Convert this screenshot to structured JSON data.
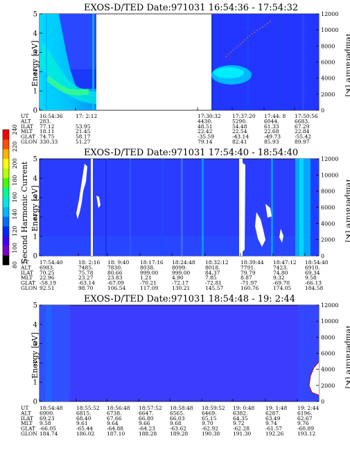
{
  "chart_data": [
    {
      "type": "heatmap",
      "title": "EXOS-D/TED   Date:971031   16:54:36 - 17:54:32",
      "ylabel": "Energy [eV]",
      "y2label": "Temperature [K]",
      "ylim": [
        0,
        5
      ],
      "y2lim": [
        0,
        12000
      ],
      "yticks": [
        "0",
        "1",
        "2",
        "3",
        "4",
        "5"
      ],
      "y2ticks": [
        "0",
        "2000",
        "4000",
        "6000",
        "8000",
        "10000",
        "12000"
      ],
      "orbit_labels": [
        "UT",
        "ALT",
        "ILAT",
        "MLT",
        "GLAT",
        "GLON"
      ],
      "orbit_columns": [
        [
          "16:54:36",
          "283.",
          "77.12",
          "18.11",
          "74.75",
          "330.33"
        ],
        [
          "17: 2:12",
          "",
          "53.95",
          "21.45",
          "58.17",
          "51.27"
        ],
        [
          "17:30:32",
          "4430.",
          "48.51",
          "22.42",
          "-35.59",
          "79.14"
        ],
        [
          "17:37:20",
          "5290.",
          "54.48",
          "22.54",
          "-43.14",
          "82.41"
        ],
        [
          "17:44: 8",
          "6044.",
          "61.33",
          "22.68",
          "-49.73",
          "85.93"
        ],
        [
          "17:50:56",
          "6683.",
          "67.29",
          "22.84",
          "-55.42",
          "89.97"
        ]
      ]
    },
    {
      "type": "heatmap",
      "title": "EXOS-D/TED   Date:971031   17:54:40 - 18:54:40",
      "ylabel": "Energy [eV]",
      "y2label": "Temperature [K]",
      "ylim": [
        0,
        5
      ],
      "y2lim": [
        0,
        12000
      ],
      "yticks": [
        "0",
        "1",
        "2",
        "3",
        "4",
        "5"
      ],
      "y2ticks": [
        "0",
        "2000",
        "4000",
        "6000",
        "8000",
        "10000",
        "12000"
      ],
      "orbit_labels": [
        "UT",
        "ALT",
        "ILAT",
        "MLT",
        "GLAT",
        "GLON"
      ],
      "orbit_columns": [
        [
          "17:54:40",
          "6983.",
          "70.25",
          "22.96",
          "-58.19",
          "92.51"
        ],
        [
          "18: 2:16",
          "7485.",
          "75.78",
          "23.27",
          "-63.14",
          "98.70"
        ],
        [
          "18: 9:40",
          "7830.",
          "80.66",
          "23.83",
          "-67.09",
          "106.54"
        ],
        [
          "18:17:16",
          "8038.",
          "999.00",
          "1.21",
          "-70.21",
          "117.09"
        ],
        [
          "18:24:48",
          "8099.",
          "999.00",
          "4.90",
          "-72.17",
          "130.21"
        ],
        [
          "18:32:12",
          "8018.",
          "84.37",
          "7.85",
          "-72.81",
          "145.57"
        ],
        [
          "18:39:44",
          "7791.",
          "79.79",
          "8.87",
          "-71.97",
          "160.76"
        ],
        [
          "18:47:12",
          "7423.",
          "74.80",
          "9.32",
          "-69.70",
          "174.05"
        ],
        [
          "18:54:40",
          "6910.",
          "69.34",
          "9.58",
          "-66.13",
          "184.58"
        ]
      ]
    },
    {
      "type": "heatmap",
      "title": "EXOS-D/TED   Date:971031   18:54:48 - 19: 2:44",
      "ylabel": "Energy [eV]",
      "y2label": "Temperature [K]",
      "ylim": [
        0,
        5
      ],
      "y2lim": [
        0,
        12000
      ],
      "yticks": [
        "0",
        "1",
        "2",
        "3",
        "4",
        "5"
      ],
      "y2ticks": [
        "0",
        "2000",
        "4000",
        "6000",
        "8000",
        "10000",
        "12000"
      ],
      "orbit_labels": [
        "UT",
        "ALT",
        "ILAT",
        "MLT",
        "GLAT",
        "GLON"
      ],
      "orbit_columns": [
        [
          "18:54:48",
          "6900.",
          "69.23",
          "9.58",
          "-66.05",
          "184.74"
        ],
        [
          "18:55:52",
          "6815.",
          "68.40",
          "9.61",
          "-65.44",
          "186.02"
        ],
        [
          "18:56:48",
          "6738.",
          "67.66",
          "9.64",
          "-64.88",
          "187.10"
        ],
        [
          "18:57:52",
          "6647.",
          "66.80",
          "9.66",
          "-64.23",
          "188.28"
        ],
        [
          "18:58:48",
          "6565.",
          "66.03",
          "9.68",
          "-63.62",
          "189.28"
        ],
        [
          "18:59:52",
          "6469.",
          "65.15",
          "9.70",
          "-62.92",
          "190.38"
        ],
        [
          "19: 0:48",
          "6382.",
          "64.35",
          "9.72",
          "-62.28",
          "191.30"
        ],
        [
          "19: 1:48",
          "6287.",
          "63.49",
          "9.74",
          "-61.57",
          "192.26"
        ],
        [
          "19: 2:44",
          "6196.",
          "62.67",
          "9.76",
          "-60.89",
          "193.12"
        ]
      ]
    }
  ],
  "colorbar": {
    "label": "Second Harmonic Current",
    "ticks": [
      "80",
      "100",
      "120",
      "140",
      "160",
      "180",
      "200",
      "220",
      "240"
    ],
    "colors": [
      "#000000",
      "#7a00c8",
      "#3c00ff",
      "#0028ff",
      "#0070ff",
      "#00b8ff",
      "#00e8e8",
      "#00ff90",
      "#40ff00",
      "#b8ff00",
      "#ffff00",
      "#ffb000",
      "#ff5000",
      "#ff0000"
    ]
  }
}
